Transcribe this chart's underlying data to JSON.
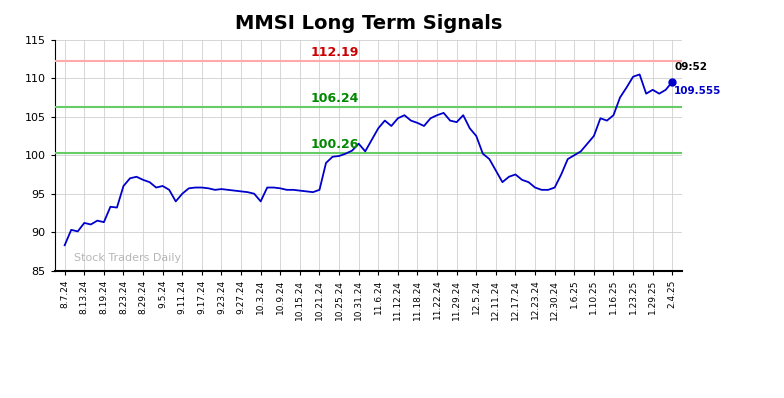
{
  "title": "MMSI Long Term Signals",
  "red_line": 112.19,
  "green_line_upper": 106.24,
  "green_line_lower": 100.26,
  "ylim": [
    85,
    115
  ],
  "yticks": [
    85,
    90,
    95,
    100,
    105,
    110,
    115
  ],
  "red_line_label": "112.19",
  "green_upper_label": "106.24",
  "green_lower_label": "100.26",
  "last_time": "09:52",
  "last_value": "109.555",
  "watermark": "Stock Traders Daily",
  "title_fontsize": 14,
  "line_color": "#0000cc",
  "red_color": "#cc0000",
  "green_color": "#008800",
  "red_line_color": "#ffaaaa",
  "green_line_color": "#66cc66",
  "background_color": "#ffffff",
  "xtick_labels": [
    "8.7.24",
    "8.13.24",
    "8.19.24",
    "8.23.24",
    "8.29.24",
    "9.5.24",
    "9.11.24",
    "9.17.24",
    "9.23.24",
    "9.27.24",
    "10.3.24",
    "10.9.24",
    "10.15.24",
    "10.21.24",
    "10.25.24",
    "10.31.24",
    "11.6.24",
    "11.12.24",
    "11.18.24",
    "11.22.24",
    "11.29.24",
    "12.5.24",
    "12.11.24",
    "12.17.24",
    "12.23.24",
    "12.30.24",
    "1.6.25",
    "1.10.25",
    "1.16.25",
    "1.23.25",
    "1.29.25",
    "2.4.25"
  ],
  "y_values": [
    88.3,
    90.3,
    90.1,
    91.2,
    91.0,
    91.5,
    91.3,
    93.3,
    93.2,
    96.0,
    97.0,
    97.2,
    96.8,
    96.5,
    95.8,
    96.0,
    95.5,
    94.0,
    95.0,
    95.7,
    95.8,
    95.8,
    95.7,
    95.5,
    95.6,
    95.5,
    95.4,
    95.3,
    95.2,
    95.0,
    94.0,
    95.8,
    95.8,
    95.7,
    95.5,
    95.5,
    95.4,
    95.3,
    95.2,
    95.5,
    99.0,
    99.8,
    99.9,
    100.2,
    100.6,
    101.5,
    100.5,
    102.0,
    103.5,
    104.5,
    103.8,
    104.8,
    105.2,
    104.5,
    104.2,
    103.8,
    104.8,
    105.2,
    105.5,
    104.5,
    104.3,
    105.2,
    103.5,
    102.5,
    100.2,
    99.5,
    98.0,
    96.5,
    97.2,
    97.5,
    96.8,
    96.5,
    95.8,
    95.5,
    95.5,
    95.8,
    97.5,
    99.5,
    100.0,
    100.5,
    101.5,
    102.5,
    104.8,
    104.5,
    105.2,
    107.5,
    108.8,
    110.2,
    110.5,
    108.0,
    108.5,
    108.0,
    108.5,
    109.555
  ]
}
